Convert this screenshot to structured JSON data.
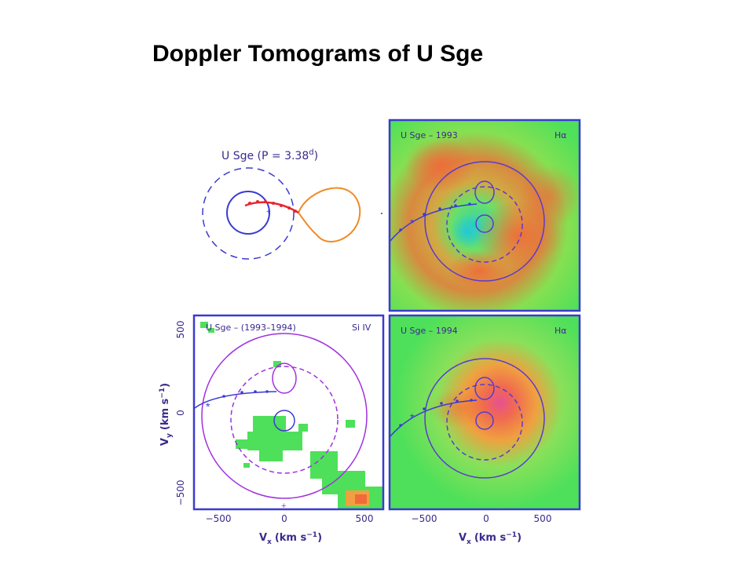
{
  "slide": {
    "title": "Doppler Tomograms of U Sge"
  },
  "schematic": {
    "title_text": "U Sge (P = 3.38",
    "title_sup": "d",
    "title_close": ")"
  },
  "panels": {
    "top_right": {
      "left": "U Sge – 1993",
      "right": "Hα"
    },
    "bottom_left": {
      "left": "U Sge – (1993–1994)",
      "right": "Si IV"
    },
    "bottom_right": {
      "left": "U Sge – 1994",
      "right": "Hα"
    }
  },
  "axes": {
    "x_label": "V",
    "x_sub": "x",
    "x_unit": "(km s",
    "x_unit_sup": "−1",
    "x_unit_close": ")",
    "y_label": "V",
    "y_sub": "y",
    "y_unit": "(km s",
    "y_unit_sup": "−1",
    "y_unit_close": ")",
    "x_ticks": [
      "−500",
      "0",
      "500"
    ],
    "y_ticks": [
      "500",
      "0",
      "−500"
    ]
  },
  "colors": {
    "frame": "#3b3bd0",
    "violet": "#8a2be2",
    "accretion_green": "#3de84a",
    "roche_orange": "#f08a24",
    "stream_red": "#e8262d"
  }
}
